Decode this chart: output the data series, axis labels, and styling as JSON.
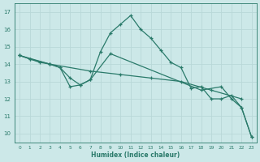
{
  "background_color": "#cce8e8",
  "grid_color": "#b8d8d8",
  "line_color": "#2a7a6a",
  "xlabel": "Humidex (Indice chaleur)",
  "xlim": [
    -0.5,
    23.5
  ],
  "ylim": [
    9.5,
    17.5
  ],
  "yticks": [
    10,
    11,
    12,
    13,
    14,
    15,
    16,
    17
  ],
  "xticks": [
    0,
    1,
    2,
    3,
    4,
    5,
    6,
    7,
    8,
    9,
    10,
    11,
    12,
    13,
    14,
    15,
    16,
    17,
    18,
    19,
    20,
    21,
    22,
    23
  ],
  "lines": [
    {
      "x": [
        0,
        1,
        2,
        3,
        4,
        5,
        6,
        7,
        8,
        9,
        10,
        11,
        12,
        13,
        14,
        15,
        16,
        17,
        18,
        19,
        20,
        21,
        22,
        23
      ],
      "y": [
        14.5,
        14.3,
        14.1,
        14.0,
        13.8,
        12.7,
        12.8,
        13.1,
        14.7,
        15.8,
        16.3,
        16.8,
        16.0,
        15.5,
        14.8,
        14.1,
        13.8,
        12.6,
        12.7,
        12.0,
        12.0,
        12.2,
        11.5,
        9.8
      ]
    },
    {
      "x": [
        0,
        3,
        7,
        10,
        13,
        16,
        19,
        22
      ],
      "y": [
        14.5,
        14.0,
        13.6,
        13.4,
        13.2,
        13.0,
        12.5,
        12.0
      ]
    },
    {
      "x": [
        0,
        1,
        3,
        4,
        5,
        6,
        7,
        9,
        18,
        20,
        21,
        22,
        23
      ],
      "y": [
        14.5,
        14.3,
        14.0,
        13.8,
        13.2,
        12.8,
        13.1,
        14.6,
        12.5,
        12.7,
        12.0,
        11.5,
        9.8
      ]
    }
  ]
}
